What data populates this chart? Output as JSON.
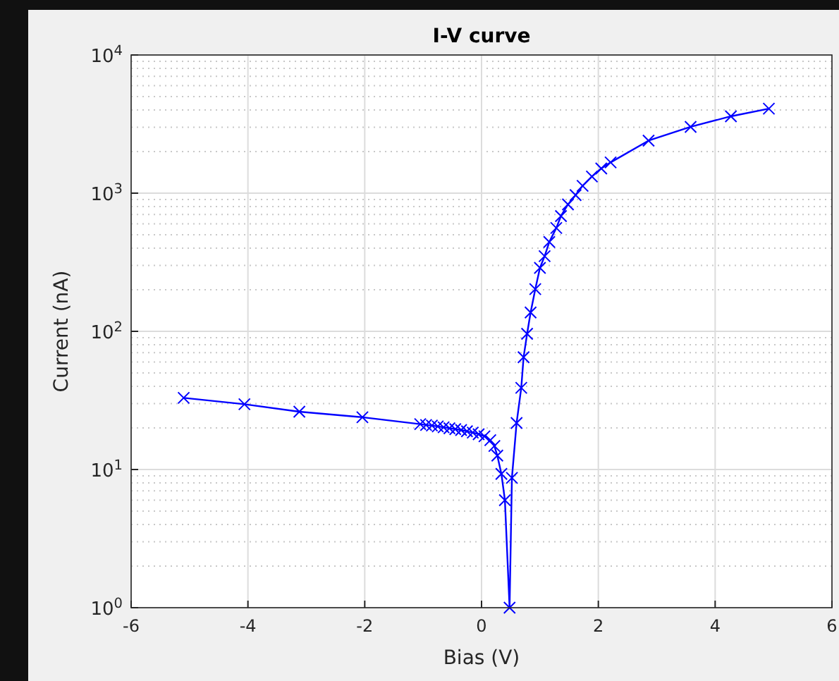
{
  "chart_data": {
    "type": "line",
    "title": "I-V curve",
    "xlabel": "Bias (V)",
    "ylabel": "Current (nA)",
    "log": "y",
    "grid": true,
    "marker": "cross",
    "line_style": "solid",
    "xlim": [
      -6,
      6
    ],
    "xticks": [
      -6,
      -4,
      -2,
      0,
      2,
      4,
      6
    ],
    "ylim": [
      1,
      10000
    ],
    "yticks": [
      {
        "value": 1,
        "label": "10$^{0}$"
      },
      {
        "value": 10,
        "label": "10$^{1}$"
      },
      {
        "value": 100,
        "label": "10$^{2}$"
      },
      {
        "value": 1000,
        "label": "10$^{3}$"
      },
      {
        "value": 10000,
        "label": "10$^{4}$"
      }
    ],
    "series": [
      {
        "color": "#0000ff",
        "x": [
          -5.1,
          -4.06,
          -3.12,
          -2.04,
          -1.05,
          -0.95,
          -0.85,
          -0.75,
          -0.65,
          -0.55,
          -0.45,
          -0.35,
          -0.25,
          -0.15,
          -0.05,
          0.05,
          0.15,
          0.22,
          0.27,
          0.34,
          0.4,
          0.48,
          0.52,
          0.6,
          0.68,
          0.72,
          0.78,
          0.84,
          0.92,
          1.0,
          1.08,
          1.16,
          1.28,
          1.36,
          1.48,
          1.61,
          1.73,
          1.89,
          2.05,
          2.21,
          2.86,
          3.58,
          4.27,
          4.92
        ],
        "values": [
          33,
          29.7,
          26.2,
          23.9,
          21.3,
          21.0,
          20.8,
          20.5,
          20.2,
          19.9,
          19.6,
          19.3,
          18.9,
          18.5,
          18.0,
          17.4,
          16.3,
          14.8,
          12.6,
          9.3,
          6.0,
          1,
          8.7,
          21.7,
          39,
          65,
          96,
          137,
          202,
          288,
          350,
          443,
          560,
          683,
          829,
          969,
          1130,
          1320,
          1510,
          1670,
          2400,
          3020,
          3600,
          4090
        ]
      }
    ]
  }
}
